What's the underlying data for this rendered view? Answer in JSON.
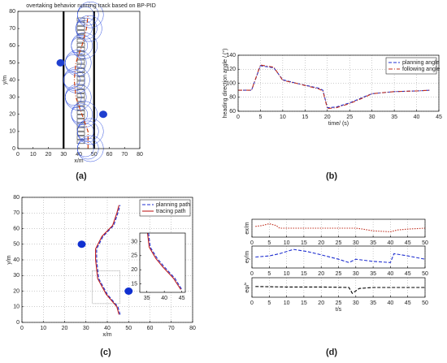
{
  "chart_data": [
    {
      "type": "line",
      "title": "overtaking behavior running track based on BP-PID",
      "xlabel": "x/m",
      "ylabel": "y/m",
      "panel_label": "(a)",
      "xlim": [
        0,
        80
      ],
      "ylim": [
        0,
        80
      ],
      "xticks": [
        0,
        10,
        20,
        30,
        40,
        50,
        60,
        70,
        80
      ],
      "yticks": [
        0,
        10,
        20,
        30,
        40,
        50,
        60,
        70,
        80
      ],
      "grid": false,
      "boundaries": [
        30,
        50
      ],
      "series": [
        {
          "color": "#cc3300",
          "linestyle": "dashdot",
          "x": [
            46,
            46,
            42,
            38,
            37,
            38,
            42,
            45,
            46
          ],
          "values": [
            0,
            10,
            20,
            30,
            40,
            50,
            60,
            70,
            78
          ]
        }
      ],
      "points": {
        "color": "#1f3fcf",
        "x": [
          28,
          56
        ],
        "values": [
          50,
          20
        ]
      }
    },
    {
      "type": "line",
      "xlabel": "time/ (s)",
      "ylabel": "heading direction angle / (°)",
      "panel_label": "(b)",
      "xlim": [
        0,
        45
      ],
      "ylim": [
        60,
        140
      ],
      "xticks": [
        0,
        5,
        10,
        15,
        20,
        25,
        30,
        35,
        40,
        45
      ],
      "yticks": [
        60,
        80,
        100,
        120,
        140
      ],
      "grid": true,
      "legend": "upper right",
      "series": [
        {
          "name": "planning angle",
          "color": "#1f2fd0",
          "linestyle": "dashed",
          "x": [
            0,
            3,
            5,
            8,
            10,
            13,
            18,
            19,
            20,
            22,
            25,
            28,
            30,
            35,
            40,
            43
          ],
          "values": [
            90,
            90,
            125,
            122,
            105,
            100,
            93,
            90,
            65,
            66,
            72,
            80,
            85,
            88,
            89,
            90
          ]
        },
        {
          "name": "following angle",
          "color": "#c03020",
          "linestyle": "dashdot",
          "x": [
            0,
            3,
            5,
            8,
            10,
            13,
            18,
            19,
            20,
            22,
            25,
            28,
            30,
            35,
            40,
            43
          ],
          "values": [
            90,
            90,
            126,
            123,
            104,
            100,
            92,
            89,
            64,
            65,
            71,
            79,
            85,
            88,
            89,
            90
          ]
        }
      ]
    },
    {
      "type": "line",
      "xlabel": "x/m",
      "ylabel": "y/m",
      "panel_label": "(c)",
      "xlim": [
        0,
        80
      ],
      "ylim": [
        0,
        80
      ],
      "xticks": [
        0,
        10,
        20,
        30,
        40,
        50,
        60,
        70,
        80
      ],
      "yticks": [
        0,
        10,
        20,
        30,
        40,
        50,
        60,
        70,
        80
      ],
      "grid": true,
      "legend": "upper right",
      "series": [
        {
          "name": "planning path",
          "color": "#1f2fd0",
          "linestyle": "dashed",
          "x": [
            46,
            45,
            40,
            36,
            35,
            35,
            38,
            43,
            45,
            46
          ],
          "values": [
            5,
            10,
            18,
            28,
            40,
            47,
            55,
            62,
            70,
            75
          ]
        },
        {
          "name": "tracing path",
          "color": "#c02020",
          "linestyle": "solid",
          "x": [
            45.5,
            44.5,
            39.5,
            35.5,
            34.5,
            34.5,
            37.5,
            42.5,
            44.5,
            45.5
          ],
          "values": [
            5,
            10,
            18,
            28,
            40,
            47,
            55,
            62,
            70,
            75
          ]
        }
      ],
      "points": {
        "color": "#1030d0",
        "x": [
          28,
          50
        ],
        "values": [
          50,
          20
        ]
      }
    },
    {
      "type": "line",
      "xlim": [
        33,
        46
      ],
      "ylim": [
        12,
        33
      ],
      "xticks": [
        35,
        40,
        45
      ],
      "yticks": [
        15,
        20,
        25,
        30
      ],
      "grid": false,
      "series": [
        {
          "color": "#1f2fd0",
          "linestyle": "dashed",
          "x": [
            35.5,
            36,
            38,
            40,
            43,
            45
          ],
          "values": [
            33,
            28,
            24,
            21,
            17,
            13
          ]
        },
        {
          "color": "#c02020",
          "linestyle": "solid",
          "x": [
            35.2,
            35.7,
            37.6,
            39.6,
            42.6,
            44.7
          ],
          "values": [
            33,
            28,
            24,
            21,
            17,
            13
          ]
        }
      ]
    },
    {
      "type": "line",
      "ylabel": "ex/m",
      "xlim": [
        0,
        50
      ],
      "ylim": [
        -1,
        1
      ],
      "xticks": [
        0,
        5,
        10,
        15,
        20,
        25,
        30,
        35,
        40,
        45,
        50
      ],
      "grid": true,
      "series": [
        {
          "color": "#c03020",
          "linestyle": "dotted",
          "x": [
            1,
            3,
            5,
            7,
            8,
            10,
            20,
            30,
            32,
            35,
            40,
            42,
            45,
            50
          ],
          "values": [
            0.2,
            0.3,
            0.5,
            0.3,
            0,
            0,
            0,
            0,
            -0.1,
            -0.3,
            -0.4,
            -0.2,
            -0.1,
            0
          ]
        }
      ]
    },
    {
      "type": "line",
      "ylabel": "ey/m",
      "xlim": [
        0,
        50
      ],
      "ylim": [
        -1,
        1
      ],
      "xticks": [
        0,
        5,
        10,
        15,
        20,
        25,
        30,
        35,
        40,
        45,
        50
      ],
      "grid": true,
      "series": [
        {
          "color": "#1f2fd0",
          "linestyle": "dashed",
          "x": [
            1,
            5,
            8,
            12,
            16,
            20,
            25,
            28,
            30,
            35,
            40,
            41,
            45,
            50
          ],
          "values": [
            0,
            0.1,
            0.3,
            0.7,
            0.5,
            0.2,
            -0.2,
            -0.5,
            -0.2,
            -0.4,
            -0.5,
            0.3,
            0.1,
            -0.2
          ]
        }
      ]
    },
    {
      "type": "line",
      "ylabel": "eφ/°",
      "xlabel": "t/s",
      "panel_label": "(d)",
      "xlim": [
        0,
        50
      ],
      "ylim": [
        -1,
        1
      ],
      "xticks": [
        0,
        5,
        10,
        15,
        20,
        25,
        30,
        35,
        40,
        45,
        50
      ],
      "grid": true,
      "series": [
        {
          "color": "#000000",
          "linestyle": "dashed",
          "x": [
            1,
            10,
            20,
            28,
            29,
            31,
            35,
            50
          ],
          "values": [
            0.1,
            0.05,
            0.05,
            0,
            -0.6,
            -0.1,
            0,
            0
          ]
        }
      ]
    }
  ]
}
